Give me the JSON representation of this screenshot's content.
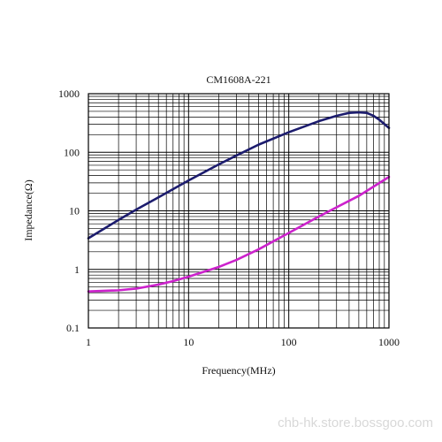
{
  "chart_data": {
    "type": "line",
    "title": "CM1608A-221",
    "xlabel": "Frequency(MHz)",
    "ylabel": "Impedance(Ω)",
    "xscale": "log",
    "yscale": "log",
    "xlim": [
      1,
      1000
    ],
    "ylim": [
      0.1,
      1000
    ],
    "grid": true,
    "x_ticks": [
      "1",
      "10",
      "100",
      "1000"
    ],
    "y_ticks": [
      "0.1",
      "1",
      "10",
      "100",
      "1000"
    ],
    "series": [
      {
        "color": "#1c1c6e",
        "points": [
          {
            "x": 1,
            "y": 3.4
          },
          {
            "x": 2,
            "y": 7
          },
          {
            "x": 3,
            "y": 10.5
          },
          {
            "x": 5,
            "y": 17
          },
          {
            "x": 10,
            "y": 33
          },
          {
            "x": 20,
            "y": 62
          },
          {
            "x": 30,
            "y": 88
          },
          {
            "x": 50,
            "y": 135
          },
          {
            "x": 100,
            "y": 220
          },
          {
            "x": 200,
            "y": 340
          },
          {
            "x": 300,
            "y": 420
          },
          {
            "x": 400,
            "y": 470
          },
          {
            "x": 500,
            "y": 480
          },
          {
            "x": 600,
            "y": 470
          },
          {
            "x": 700,
            "y": 420
          },
          {
            "x": 800,
            "y": 360
          },
          {
            "x": 1000,
            "y": 260
          }
        ]
      },
      {
        "color": "#cc22cc",
        "points": [
          {
            "x": 1,
            "y": 0.42
          },
          {
            "x": 2,
            "y": 0.44
          },
          {
            "x": 3,
            "y": 0.47
          },
          {
            "x": 5,
            "y": 0.55
          },
          {
            "x": 7,
            "y": 0.63
          },
          {
            "x": 10,
            "y": 0.75
          },
          {
            "x": 20,
            "y": 1.1
          },
          {
            "x": 30,
            "y": 1.45
          },
          {
            "x": 50,
            "y": 2.2
          },
          {
            "x": 100,
            "y": 4.2
          },
          {
            "x": 200,
            "y": 8
          },
          {
            "x": 300,
            "y": 11.5
          },
          {
            "x": 500,
            "y": 18
          },
          {
            "x": 1000,
            "y": 38
          }
        ]
      }
    ]
  },
  "watermark": "chb-hk.store.bossgoo.com"
}
